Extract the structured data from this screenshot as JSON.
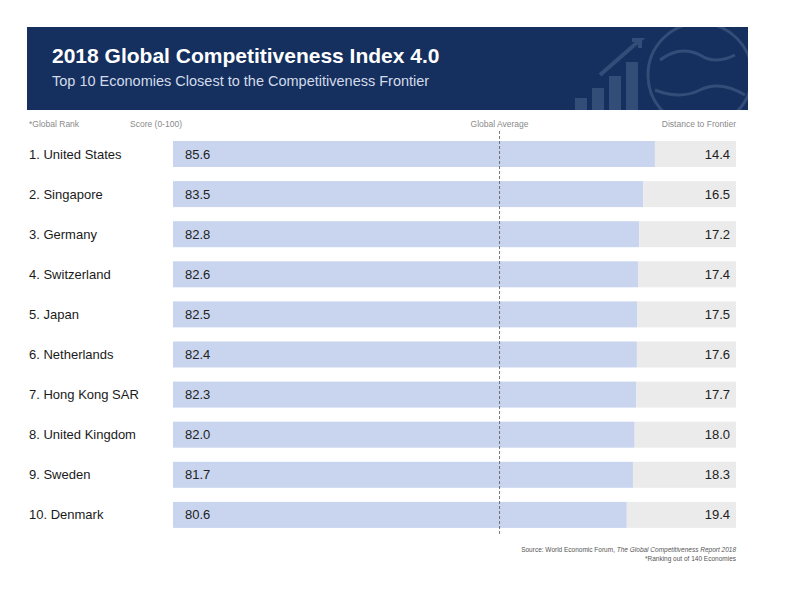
{
  "chart_data": {
    "type": "bar",
    "orientation": "horizontal",
    "stacked": true,
    "data_labels": true,
    "tick_labels": false,
    "title": "2018 Global Competitiveness Index 4.0",
    "subtitle": "Top 10 Economies Closest to the Competitiveness Frontier",
    "y_label": "*Global Rank",
    "categories": [
      "1. United States",
      "2. Singapore",
      "3. Germany",
      "4. Switzerland",
      "5. Japan",
      "6. Netherlands",
      "7. Hong Kong SAR",
      "8. United Kingdom",
      "9. Sweden",
      "10. Denmark"
    ],
    "series": [
      {
        "name": "Score (0-100)",
        "color": "#c9d5ee",
        "values": [
          85.6,
          83.5,
          82.8,
          82.6,
          82.5,
          82.4,
          82.3,
          82.0,
          81.7,
          80.6
        ],
        "value_labels": [
          "85.6",
          "83.5",
          "82.8",
          "82.6",
          "82.5",
          "82.4",
          "82.3",
          "82.0",
          "81.7",
          "80.6"
        ]
      },
      {
        "name": "Distance to Frontier",
        "color": "#ebebeb",
        "values": [
          14.4,
          16.5,
          17.2,
          17.4,
          17.5,
          17.6,
          17.7,
          18.0,
          18.3,
          19.4
        ],
        "value_labels": [
          "14.4",
          "16.5",
          "17.2",
          "17.4",
          "17.5",
          "17.6",
          "17.7",
          "18.0",
          "18.3",
          "19.4"
        ]
      }
    ],
    "xlim": [
      0,
      100
    ],
    "global_average": {
      "label": "Global Average",
      "value": 58
    },
    "source": {
      "text": "Source: World Economic Forum,",
      "publication": "The Global Competitiveness Report 2018"
    },
    "footnote": "*Ranking out of 140 Economies"
  }
}
